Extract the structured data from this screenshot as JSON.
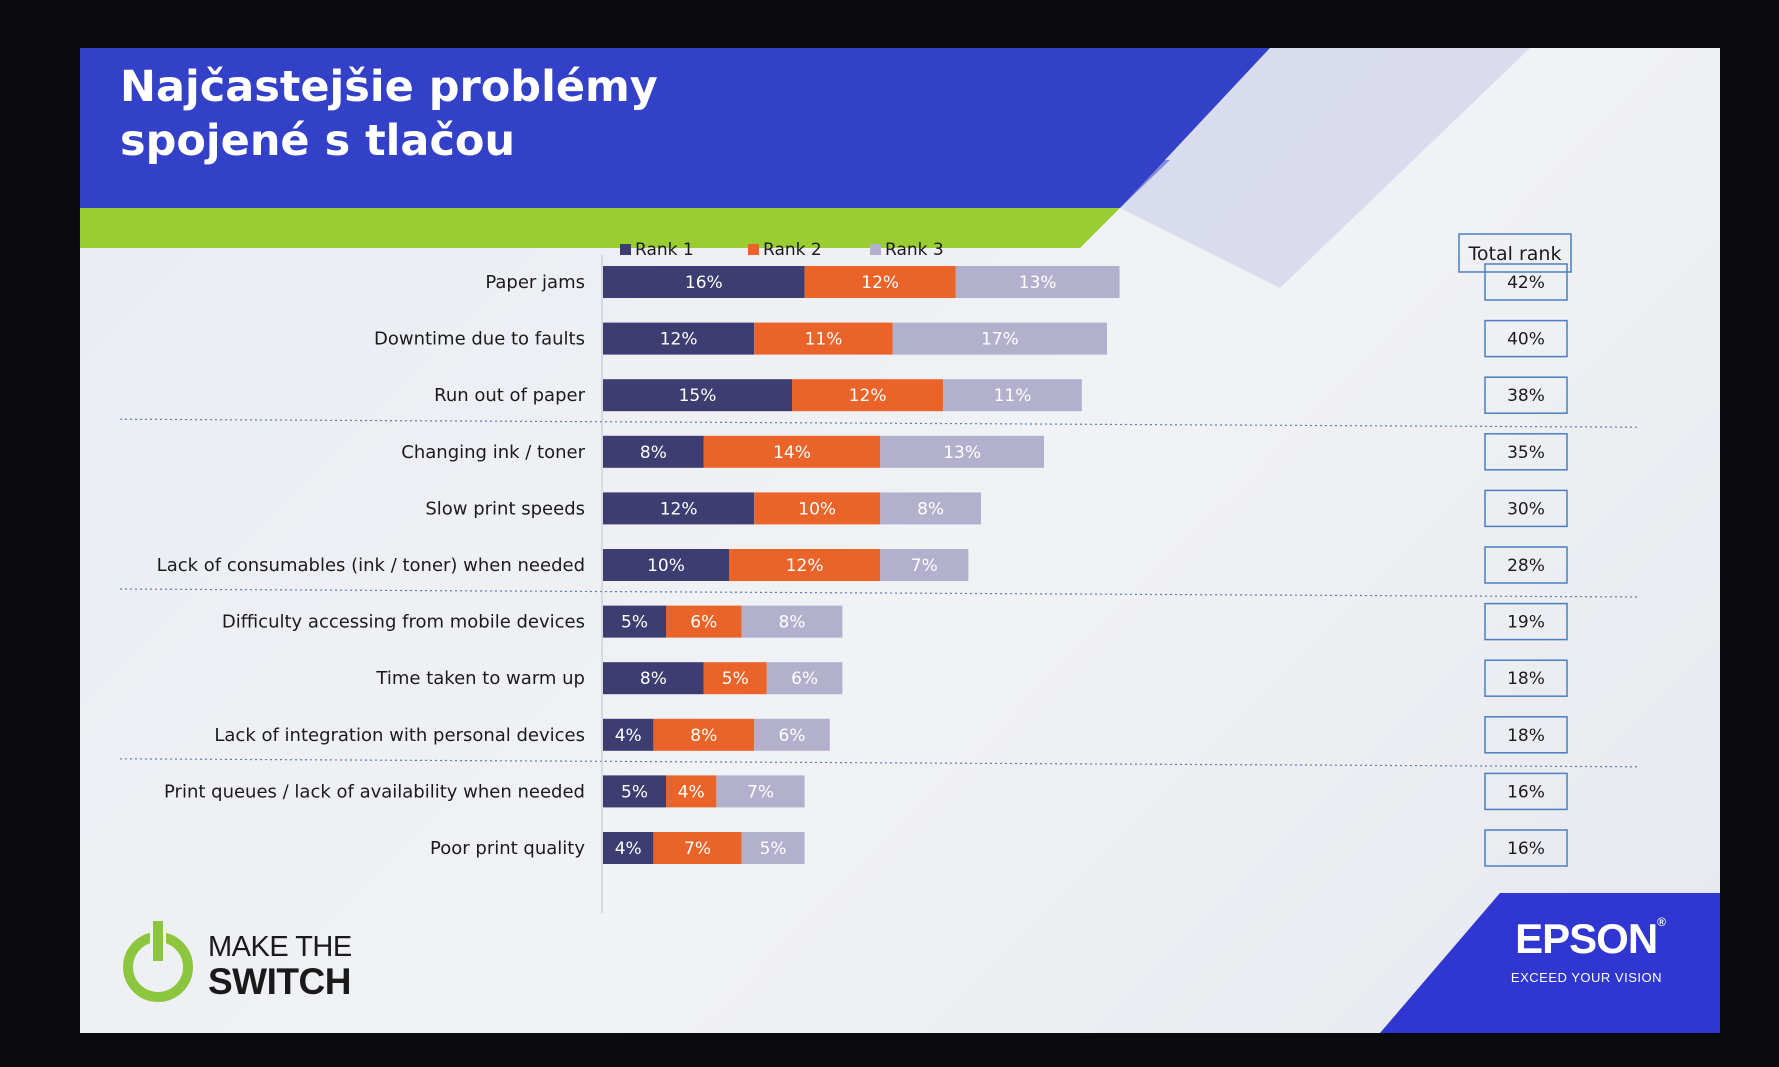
{
  "slide": {
    "title_line1": "Najčastejšie problémy",
    "title_line2": "spojené s tlačou",
    "colors": {
      "banner_blue": "#3340c8",
      "banner_green": "#9acd32",
      "rank1": "#3d3d72",
      "rank2": "#ea6328",
      "rank3": "#b3b0cd",
      "box_border": "#4a7fc1"
    }
  },
  "chart_data": {
    "type": "bar",
    "orientation": "horizontal",
    "stacked": true,
    "categories": [
      "Paper jams",
      "Downtime due to faults",
      "Run out of paper",
      "Changing ink / toner",
      "Slow print speeds",
      "Lack of consumables (ink / toner) when needed",
      "Difficulty accessing from mobile devices",
      "Time taken to warm up",
      "Lack of integration with personal devices",
      "Print queues / lack of availability when needed",
      "Poor print quality"
    ],
    "series": [
      {
        "name": "Rank 1",
        "values": [
          16,
          12,
          15,
          8,
          12,
          10,
          5,
          8,
          4,
          5,
          4
        ],
        "labels": [
          "16%",
          "12%",
          "15%",
          "8%",
          "12%",
          "10%",
          "5%",
          "8%",
          "4%",
          "5%",
          "4%"
        ]
      },
      {
        "name": "Rank 2",
        "values": [
          12,
          11,
          12,
          14,
          10,
          12,
          6,
          5,
          8,
          4,
          7
        ],
        "labels": [
          "12%",
          "11%",
          "12%",
          "14%",
          "10%",
          "12%",
          "6%",
          "5%",
          "8%",
          "4%",
          "7%"
        ]
      },
      {
        "name": "Rank 3",
        "values": [
          13,
          17,
          11,
          13,
          8,
          7,
          8,
          6,
          6,
          7,
          5
        ],
        "labels": [
          "13%",
          "17%",
          "11%",
          "13%",
          "8%",
          "7%",
          "8%",
          "6%",
          "6%",
          "7%",
          "5%"
        ]
      }
    ],
    "total_rank_header": "Total rank",
    "total_rank": [
      "42%",
      "40%",
      "38%",
      "35%",
      "30%",
      "28%",
      "19%",
      "18%",
      "18%",
      "16%",
      "16%"
    ],
    "legend_position": "top",
    "group_dividers_after": [
      2,
      5,
      8
    ]
  },
  "logos": {
    "left_line1": "MAKE THE",
    "left_line2": "SWITCH",
    "brand": "EPSON",
    "brand_mark": "®",
    "tagline": "EXCEED YOUR VISION"
  }
}
